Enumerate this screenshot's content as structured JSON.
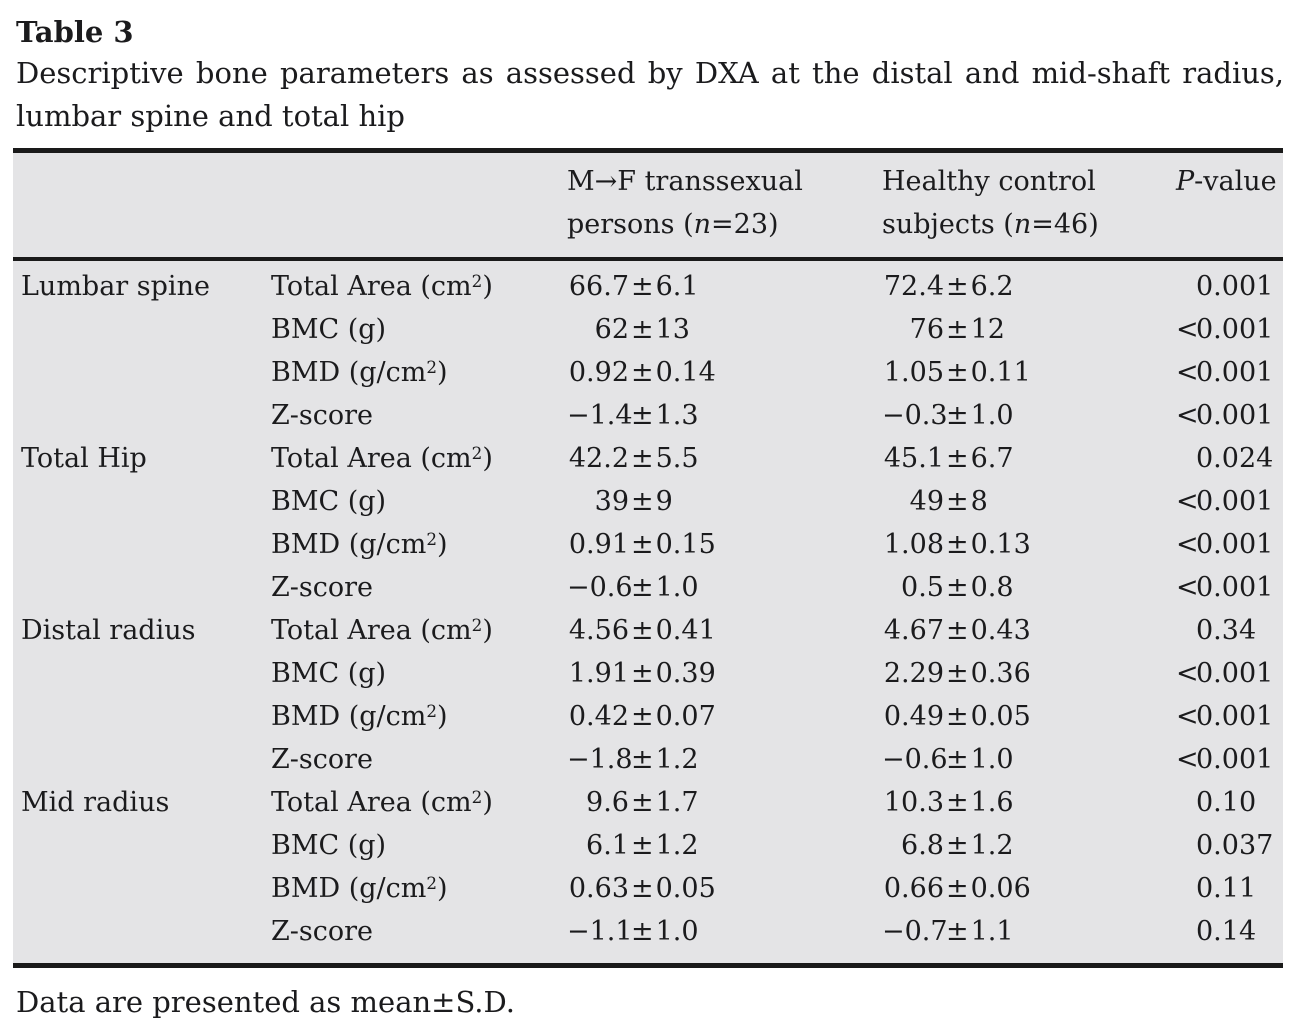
{
  "title": "Table 3",
  "caption_line1": "Descriptive bone parameters as assessed by DXA at the distal and mid-shaft radius,",
  "caption_line2": "lumbar spine and total hip",
  "footnote": "Data are presented as mean±S.D.",
  "colors": {
    "table_background": "#e4e4e6",
    "rule": "#1a1a1a",
    "text": "#1b1b1d"
  },
  "header": {
    "mf_line1": "M→F transsexual",
    "mf_line2_parts": [
      {
        "t": "persons ("
      },
      {
        "t": "n",
        "i": true
      },
      {
        "t": "=23)"
      }
    ],
    "hc_line1": "Healthy control",
    "hc_line2_parts": [
      {
        "t": "subjects ("
      },
      {
        "t": "n",
        "i": true
      },
      {
        "t": "=46)"
      }
    ],
    "p_parts": [
      {
        "t": "P",
        "i": true
      },
      {
        "t": "-value"
      }
    ]
  },
  "rows": [
    {
      "region": "Lumbar spine",
      "param": "Total Area (cm²)",
      "mf": "66.7±6.1",
      "hc": "72.4±6.2",
      "p": "0.001"
    },
    {
      "region": "",
      "param": "BMC (g)",
      "mf": "62±13",
      "hc": "76±12",
      "p": "<0.001"
    },
    {
      "region": "",
      "param": "BMD (g/cm²)",
      "mf": "0.92±0.14",
      "hc": "1.05±0.11",
      "p": "<0.001"
    },
    {
      "region": "",
      "param": "Z-score",
      "mf": "−1.4±1.3",
      "hc": "−0.3±1.0",
      "p": "<0.001"
    },
    {
      "region": "Total Hip",
      "param": "Total Area (cm²)",
      "mf": "42.2±5.5",
      "hc": "45.1±6.7",
      "p": "0.024"
    },
    {
      "region": "",
      "param": "BMC (g)",
      "mf": "39±9",
      "hc": "49±8",
      "p": "<0.001"
    },
    {
      "region": "",
      "param": "BMD (g/cm²)",
      "mf": "0.91±0.15",
      "hc": "1.08±0.13",
      "p": "<0.001"
    },
    {
      "region": "",
      "param": "Z-score",
      "mf": "−0.6±1.0",
      "hc": "0.5±0.8",
      "p": "<0.001"
    },
    {
      "region": "Distal radius",
      "param": "Total Area (cm²)",
      "mf": "4.56±0.41",
      "hc": "4.67±0.43",
      "p": "0.34"
    },
    {
      "region": "",
      "param": "BMC (g)",
      "mf": "1.91±0.39",
      "hc": "2.29±0.36",
      "p": "<0.001"
    },
    {
      "region": "",
      "param": "BMD (g/cm²)",
      "mf": "0.42±0.07",
      "hc": "0.49±0.05",
      "p": "<0.001"
    },
    {
      "region": "",
      "param": "Z-score",
      "mf": "−1.8±1.2",
      "hc": "−0.6±1.0",
      "p": "<0.001"
    },
    {
      "region": "Mid radius",
      "param": "Total Area (cm²)",
      "mf": "9.6±1.7",
      "hc": "10.3±1.6",
      "p": "0.10"
    },
    {
      "region": "",
      "param": "BMC (g)",
      "mf": "6.1±1.2",
      "hc": "6.8±1.2",
      "p": "0.037"
    },
    {
      "region": "",
      "param": "BMD (g/cm²)",
      "mf": "0.63±0.05",
      "hc": "0.66±0.06",
      "p": "0.11"
    },
    {
      "region": "",
      "param": "Z-score",
      "mf": "−1.1±1.0",
      "hc": "−0.7±1.1",
      "p": "0.14"
    }
  ]
}
